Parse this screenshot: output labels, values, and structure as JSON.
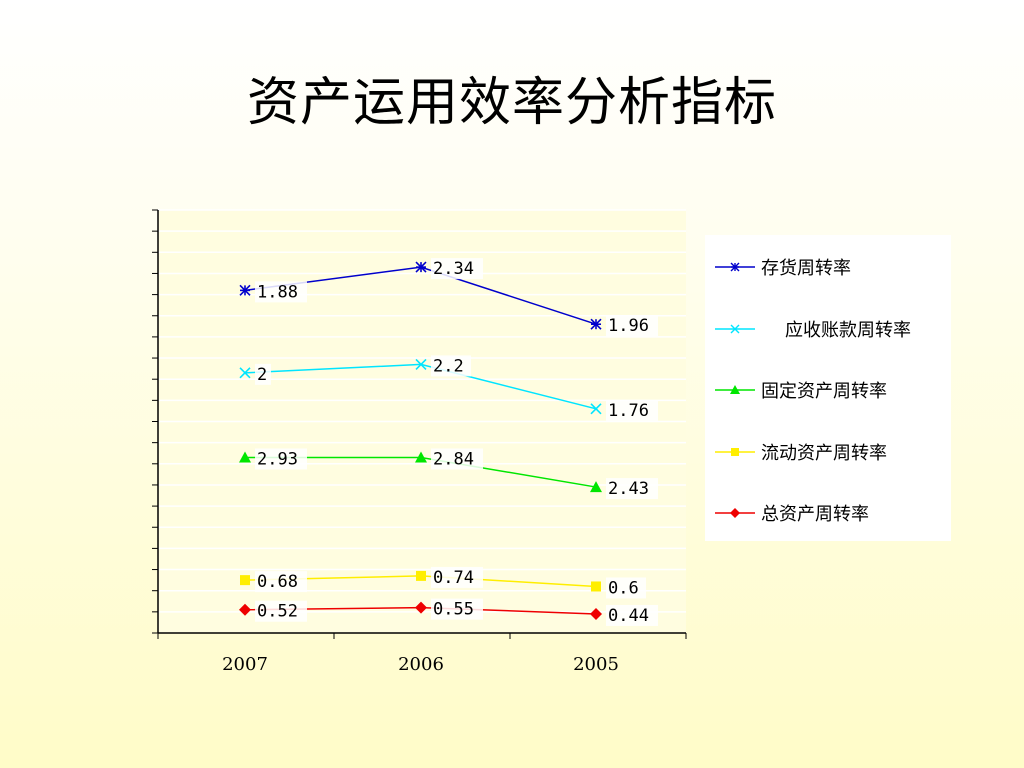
{
  "title": "资产运用效率分析指标",
  "chart_data": {
    "type": "line",
    "categories": [
      "2007",
      "2006",
      "2005"
    ],
    "series": [
      {
        "name": "存货周转率",
        "color": "#0000cc",
        "marker": "star",
        "values": [
          1.88,
          2.34,
          1.96
        ],
        "labels": [
          "1.88",
          "2.34",
          "1.96"
        ],
        "plot_values": [
          16.2,
          17.3,
          14.6
        ]
      },
      {
        "name": "应收账款周转率",
        "color": "#00e5ff",
        "marker": "x",
        "values": [
          2,
          2.2,
          1.76
        ],
        "labels": [
          "2",
          "2.2",
          "1.76"
        ],
        "plot_values": [
          12.3,
          12.7,
          10.6
        ]
      },
      {
        "name": "固定资产周转率",
        "color": "#00e600",
        "marker": "triangle",
        "values": [
          2.93,
          2.84,
          2.43
        ],
        "labels": [
          "2.93",
          "2.84",
          "2.43"
        ],
        "plot_values": [
          8.3,
          8.3,
          6.9
        ]
      },
      {
        "name": "流动资产周转率",
        "color": "#ffee00",
        "marker": "square",
        "values": [
          0.68,
          0.74,
          0.6
        ],
        "labels": [
          "0.68",
          "0.74",
          "0.6"
        ],
        "plot_values": [
          2.5,
          2.7,
          2.2
        ]
      },
      {
        "name": "总资产周转率",
        "color": "#ee0000",
        "marker": "diamond",
        "values": [
          0.52,
          0.55,
          0.44
        ],
        "labels": [
          "0.52",
          "0.55",
          "0.44"
        ],
        "plot_values": [
          1.1,
          1.2,
          0.9
        ]
      }
    ],
    "ylim": [
      0,
      20
    ],
    "grid": true,
    "legend_position": "right"
  }
}
